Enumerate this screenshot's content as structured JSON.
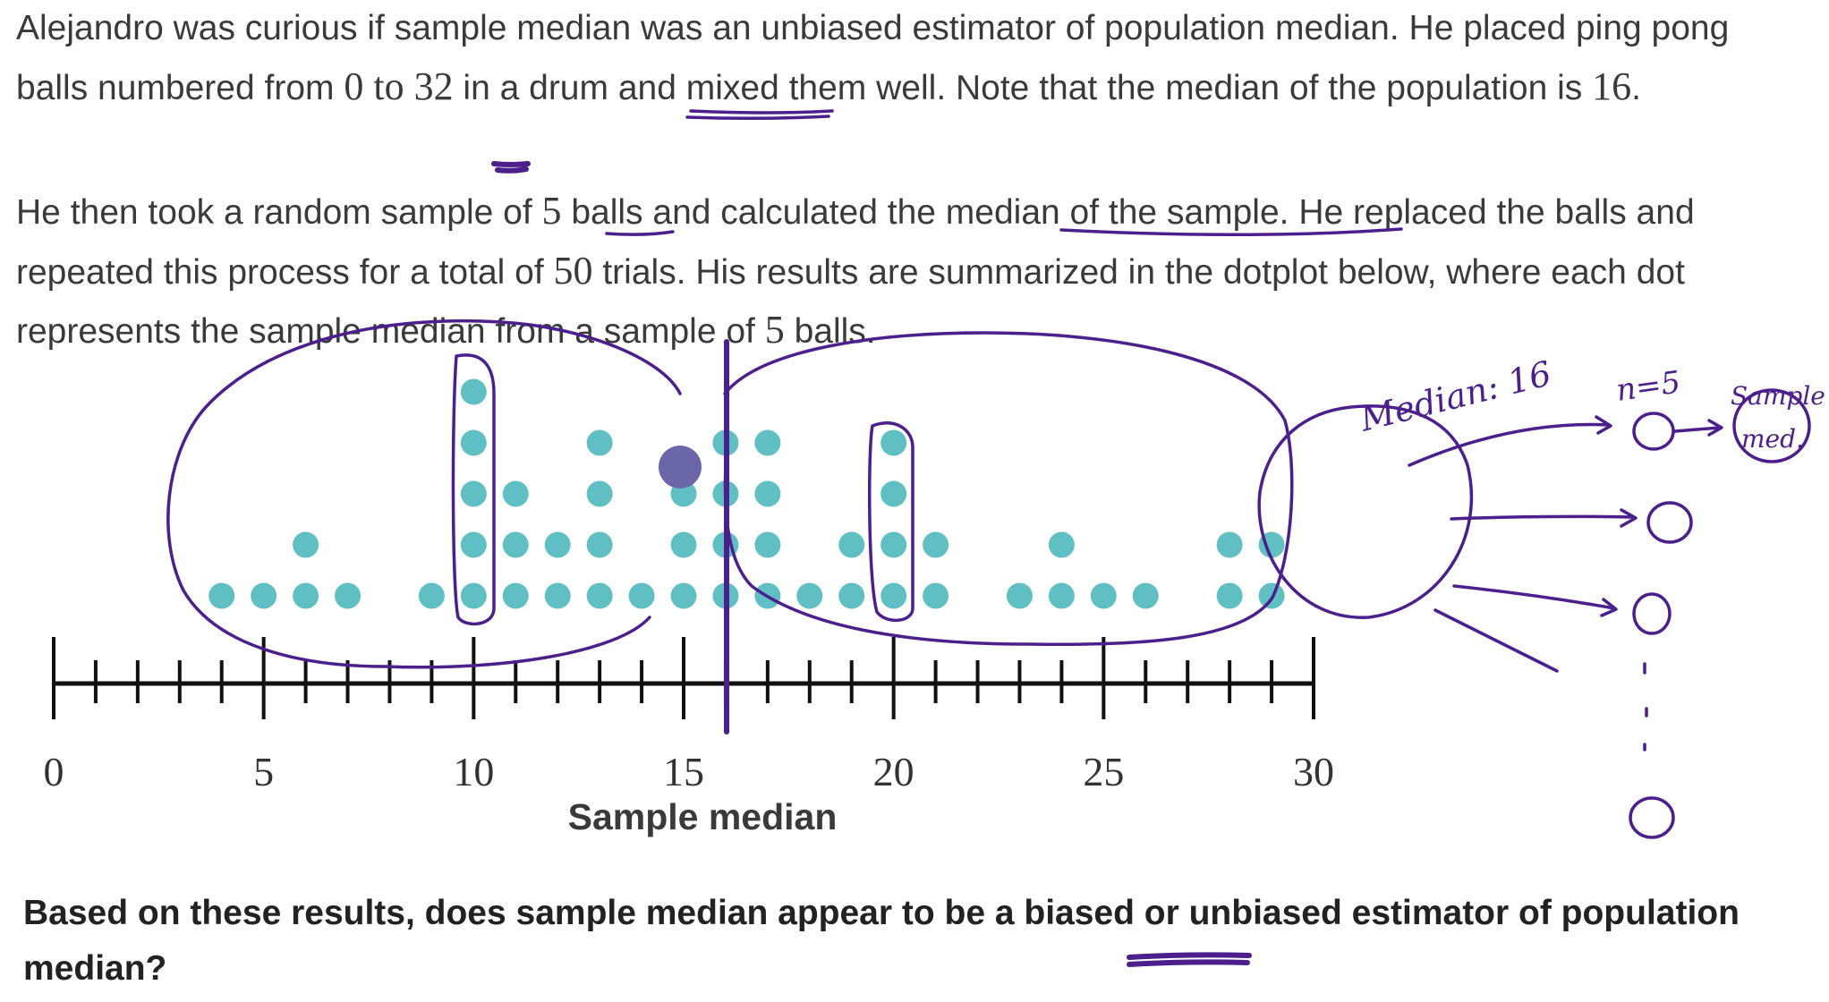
{
  "problem": {
    "p1": {
      "a": "Alejandro was curious if sample median was an unbiased estimator of population median. He placed ping pong balls numbered from ",
      "range": "0 to 32",
      "b": " in a drum and mixed them well. Note that the median of the population is ",
      "median": "16",
      "c": "."
    },
    "p2": {
      "a": "He then took a random sample of ",
      "n": "5",
      "b": " balls and calculated the median of the sample. He replaced the balls and repeated this process for a total of ",
      "trials": "50",
      "c": " trials. His results are summarized in the dotplot below, where each dot represents the sample median from a sample of ",
      "n2": "5",
      "d": " balls."
    },
    "question": "Based on these results, does sample median appear to be a biased or unbiased estimator of population median?"
  },
  "chart_data": {
    "type": "scatter",
    "subtype": "dotplot",
    "xlabel": "Sample median",
    "xlim": [
      0,
      30
    ],
    "major_ticks": [
      0,
      5,
      10,
      15,
      20,
      25,
      30
    ],
    "tick_labels": [
      "0",
      "5",
      "10",
      "15",
      "20",
      "25",
      "30"
    ],
    "dot_color": "#5fbfc3",
    "counts": [
      {
        "x": 4,
        "count": 1
      },
      {
        "x": 5,
        "count": 1
      },
      {
        "x": 6,
        "count": 2
      },
      {
        "x": 7,
        "count": 1
      },
      {
        "x": 9,
        "count": 1
      },
      {
        "x": 10,
        "count": 5
      },
      {
        "x": 11,
        "count": 3
      },
      {
        "x": 12,
        "count": 2
      },
      {
        "x": 13,
        "count": 4
      },
      {
        "x": 14,
        "count": 1
      },
      {
        "x": 15,
        "count": 3
      },
      {
        "x": 16,
        "count": 4
      },
      {
        "x": 17,
        "count": 4
      },
      {
        "x": 18,
        "count": 1
      },
      {
        "x": 19,
        "count": 2
      },
      {
        "x": 20,
        "count": 4
      },
      {
        "x": 21,
        "count": 2
      },
      {
        "x": 23,
        "count": 1
      },
      {
        "x": 24,
        "count": 2
      },
      {
        "x": 25,
        "count": 1
      },
      {
        "x": 26,
        "count": 1
      },
      {
        "x": 28,
        "count": 2
      },
      {
        "x": 29,
        "count": 2
      }
    ]
  },
  "annotations": {
    "median_note": "Median: 16",
    "n_note": "n=5",
    "sample_note_1": "Sample",
    "sample_note_2": "med.",
    "ink_color": "#4b1f8c"
  }
}
